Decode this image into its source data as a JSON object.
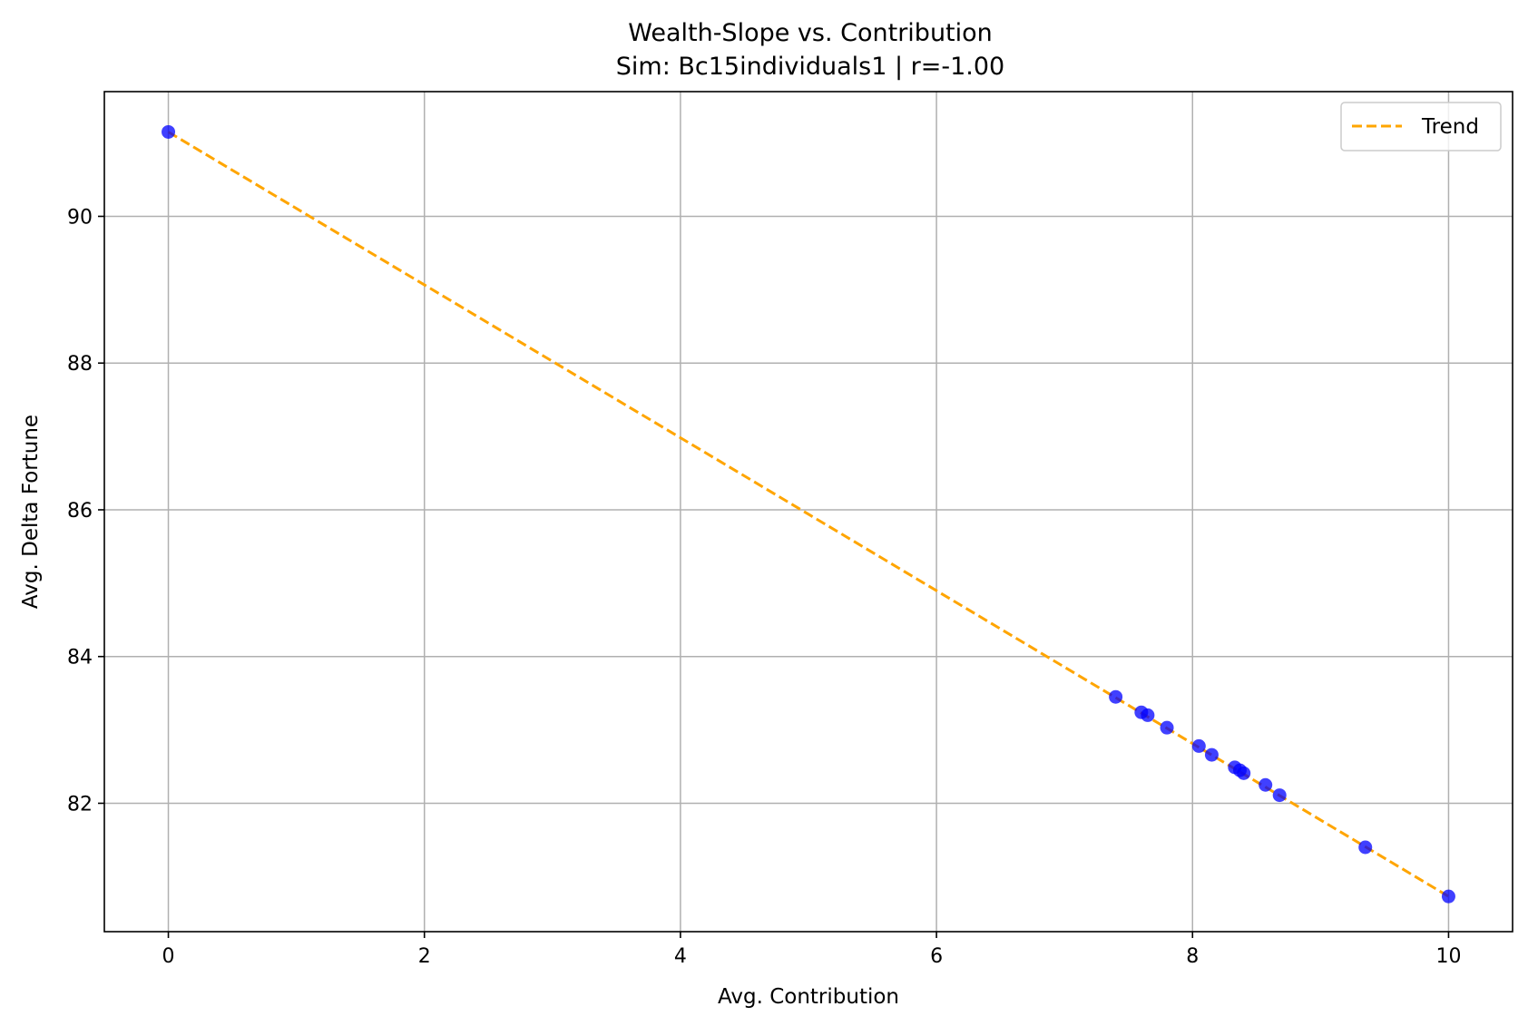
{
  "chart_data": {
    "type": "scatter",
    "title": "Wealth-Slope vs. Contribution",
    "subtitle": "Sim: Bc15individuals1 | r=-1.00",
    "xlabel": "Avg. Contribution",
    "ylabel": "Avg. Delta Fortune",
    "xlim": [
      -0.5,
      10.5
    ],
    "ylim": [
      80.25,
      91.7
    ],
    "xticks": [
      0,
      2,
      4,
      6,
      8,
      10
    ],
    "yticks": [
      82,
      84,
      86,
      88,
      90
    ],
    "grid": true,
    "legend_position": "top-right",
    "colors": {
      "points": "#0000ff",
      "trend": "#ffa500",
      "grid": "#b0b0b0"
    },
    "points": {
      "x": [
        0.0,
        7.4,
        7.6,
        7.65,
        7.8,
        8.05,
        8.15,
        8.33,
        8.37,
        8.4,
        8.57,
        8.68,
        9.35,
        10.0
      ],
      "y": [
        91.15,
        83.45,
        83.24,
        83.2,
        83.03,
        82.78,
        82.66,
        82.49,
        82.45,
        82.41,
        82.25,
        82.11,
        81.4,
        80.73
      ]
    },
    "trend": {
      "name": "Trend",
      "x": [
        0,
        10
      ],
      "y": [
        91.15,
        80.73
      ]
    }
  }
}
